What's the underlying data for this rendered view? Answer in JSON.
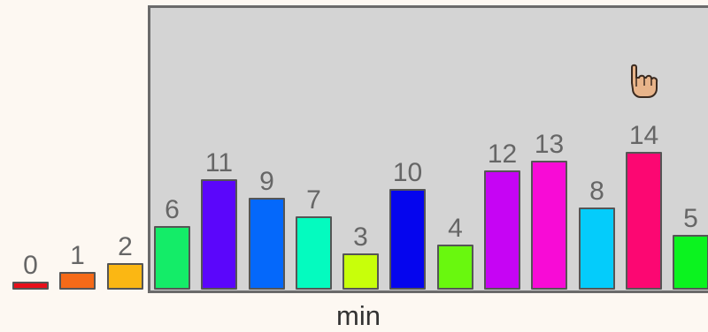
{
  "region_label": "min",
  "bars": [
    {
      "value": "0",
      "color": "#e8101a"
    },
    {
      "value": "1",
      "color": "#f56a18"
    },
    {
      "value": "2",
      "color": "#fbb713"
    },
    {
      "value": "6",
      "color": "#14ec68"
    },
    {
      "value": "11",
      "color": "#5b06fb"
    },
    {
      "value": "9",
      "color": "#0468fb"
    },
    {
      "value": "7",
      "color": "#04fbbf"
    },
    {
      "value": "3",
      "color": "#c8ff0a"
    },
    {
      "value": "10",
      "color": "#0505ee"
    },
    {
      "value": "4",
      "color": "#69f80e"
    },
    {
      "value": "12",
      "color": "#c604f4"
    },
    {
      "value": "13",
      "color": "#f80bd6"
    },
    {
      "value": "8",
      "color": "#04ccfb"
    },
    {
      "value": "14",
      "color": "#fc0772"
    },
    {
      "value": "5",
      "color": "#0bf31f"
    }
  ],
  "cursor_icon": "pointing-hand-icon"
}
